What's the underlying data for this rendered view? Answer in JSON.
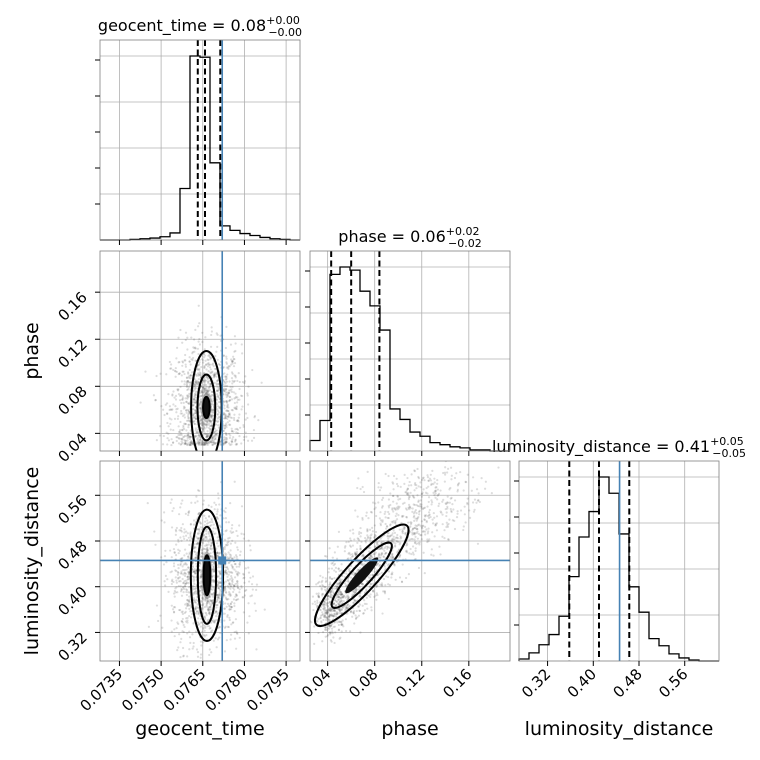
{
  "chart_data": {
    "type": "scatter",
    "subtype": "corner",
    "parameters": [
      "geocent_time",
      "phase",
      "luminosity_distance"
    ],
    "truths": {
      "geocent_time": 0.0772,
      "phase": null,
      "luminosity_distance": 0.446
    },
    "grid": true,
    "titles": [
      {
        "param": "geocent_time",
        "base": "geocent_time = 0.08",
        "plus": "+0.00",
        "minus": "−0.00"
      },
      {
        "param": "phase",
        "base": "phase = 0.06",
        "plus": "+0.02",
        "minus": "−0.02"
      },
      {
        "param": "luminosity_distance",
        "base": "luminosity_distance = 0.41",
        "plus": "+0.05",
        "minus": "−0.05"
      }
    ],
    "xlabels": [
      "geocent_time",
      "phase",
      "luminosity_distance"
    ],
    "ylabels": [
      "phase",
      "luminosity_distance"
    ],
    "ranges": {
      "geocent_time": [
        0.0728,
        0.08
      ],
      "phase": [
        0.025,
        0.195
      ],
      "luminosity_distance": [
        0.27,
        0.62
      ]
    },
    "ticks": {
      "geocent_time": [
        "0.0735",
        "0.0750",
        "0.0765",
        "0.0780",
        "0.0795"
      ],
      "phase": [
        "0.04",
        "0.08",
        "0.12",
        "0.16"
      ],
      "luminosity_distance": [
        "0.32",
        "0.40",
        "0.48",
        "0.56"
      ]
    },
    "marginals": {
      "geocent_time": {
        "bin_edges": [
          0.0728,
          0.07316,
          0.07352,
          0.07388,
          0.07424,
          0.0746,
          0.07496,
          0.07532,
          0.07568,
          0.07604,
          0.0764,
          0.07676,
          0.07712,
          0.07748,
          0.07784,
          0.0782,
          0.07856,
          0.07892,
          0.07928,
          0.07964,
          0.08
        ],
        "counts": [
          0,
          0,
          0,
          1,
          2,
          3,
          5,
          11,
          80,
          286,
          284,
          120,
          22,
          15,
          10,
          7,
          4,
          2,
          1,
          0
        ],
        "quantiles": [
          0.07632,
          0.07658,
          0.07713
        ]
      },
      "phase": {
        "bin_edges": [
          0.025,
          0.0335,
          0.042,
          0.0505,
          0.059,
          0.0675,
          0.076,
          0.0845,
          0.093,
          0.1015,
          0.11,
          0.1185,
          0.127,
          0.1355,
          0.144,
          0.1525,
          0.161,
          0.1695,
          0.178,
          0.1865,
          0.195
        ],
        "counts": [
          10,
          29,
          168,
          175,
          172,
          152,
          138,
          115,
          40,
          30,
          18,
          14,
          8,
          6,
          4,
          3,
          1,
          1,
          0,
          0
        ],
        "quantiles": [
          0.043,
          0.06,
          0.084
        ]
      },
      "luminosity_distance": {
        "bin_edges": [
          0.27,
          0.2875,
          0.305,
          0.3225,
          0.34,
          0.3575,
          0.375,
          0.3925,
          0.41,
          0.4275,
          0.445,
          0.4625,
          0.48,
          0.4975,
          0.515,
          0.5325,
          0.55,
          0.5675,
          0.585,
          0.6025,
          0.62
        ],
        "counts": [
          2,
          8,
          16,
          26,
          44,
          83,
          122,
          147,
          181,
          165,
          125,
          73,
          48,
          22,
          15,
          7,
          3,
          1,
          0,
          0
        ],
        "quantiles": [
          0.358,
          0.41,
          0.463
        ]
      }
    },
    "joint": {
      "geocent_time_phase": {
        "mean": [
          0.07663,
          0.062
        ],
        "sd": [
          0.00045,
          0.022
        ],
        "contour_sizes": [
          [
            0.00012,
            0.009
          ],
          [
            0.00032,
            0.028
          ],
          [
            0.00055,
            0.048
          ]
        ]
      },
      "geocent_time_luminosity_distance": {
        "mean": [
          0.07665,
          0.42
        ],
        "sd": [
          0.00045,
          0.05
        ],
        "contour_sizes": [
          [
            0.00012,
            0.035
          ],
          [
            0.00033,
            0.085
          ],
          [
            0.00058,
            0.115
          ]
        ]
      },
      "phase_luminosity_distance": {
        "start": [
          0.038,
          0.35
        ],
        "end": [
          0.1,
          0.49
        ],
        "width": 0.028
      }
    }
  }
}
